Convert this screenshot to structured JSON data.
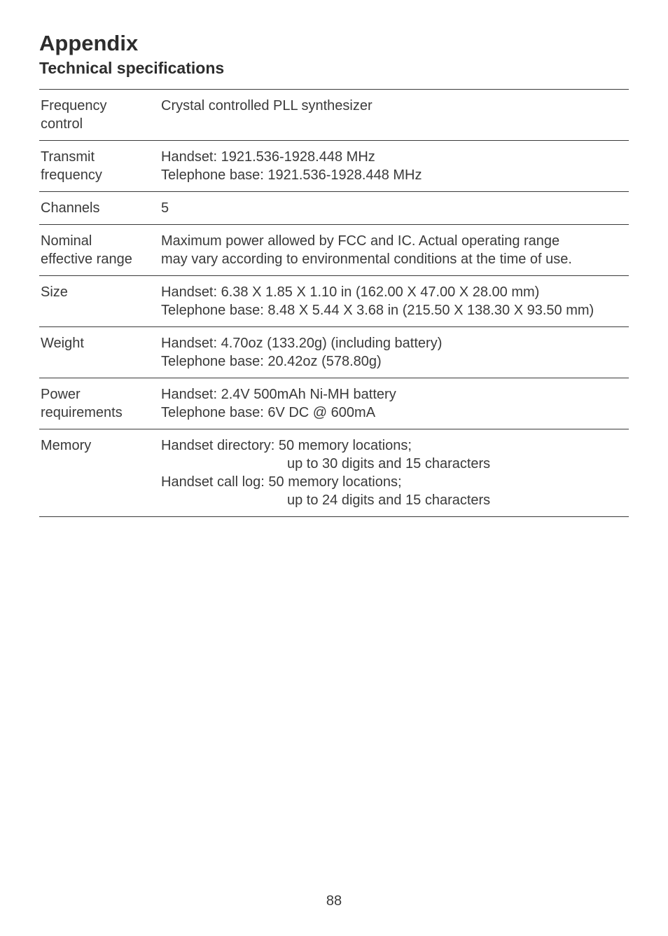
{
  "page": {
    "title": "Appendix",
    "subtitle": "Technical specifications",
    "page_number": "88"
  },
  "specs": [
    {
      "label_line1": "Frequency",
      "label_line2": "control",
      "value": "Crystal controlled PLL synthesizer"
    },
    {
      "label_line1": "Transmit",
      "label_line2": "frequency",
      "value_line1": "Handset: 1921.536-1928.448 MHz",
      "value_line2": "Telephone base: 1921.536-1928.448 MHz"
    },
    {
      "label_line1": "Channels",
      "value": "5"
    },
    {
      "label_line1": "Nominal",
      "label_line2": "effective range",
      "value_line1": "Maximum power allowed by FCC and IC. Actual operating range",
      "value_line2": "may vary according to environmental conditions at the time of use."
    },
    {
      "label_line1": "Size",
      "value_line1": "Handset: 6.38 X 1.85 X 1.10 in (162.00 X 47.00 X 28.00 mm)",
      "value_line2": "Telephone base: 8.48 X 5.44 X 3.68 in (215.50 X 138.30 X 93.50 mm)"
    },
    {
      "label_line1": "Weight",
      "value_line1": "Handset: 4.70oz (133.20g) (including battery)",
      "value_line2": "Telephone base: 20.42oz (578.80g)"
    },
    {
      "label_line1": "Power",
      "label_line2": "requirements",
      "value_line1": "Handset: 2.4V 500mAh Ni-MH battery",
      "value_line2": "Telephone base: 6V DC @ 600mA"
    },
    {
      "label_line1": "Memory",
      "value_line1": "Handset directory: 50 memory locations;",
      "value_line2_indent": "up to 30 digits and 15 characters",
      "value_line3": "Handset call log: 50 memory locations;",
      "value_line4_indent": "up to 24 digits and 15 characters"
    }
  ]
}
